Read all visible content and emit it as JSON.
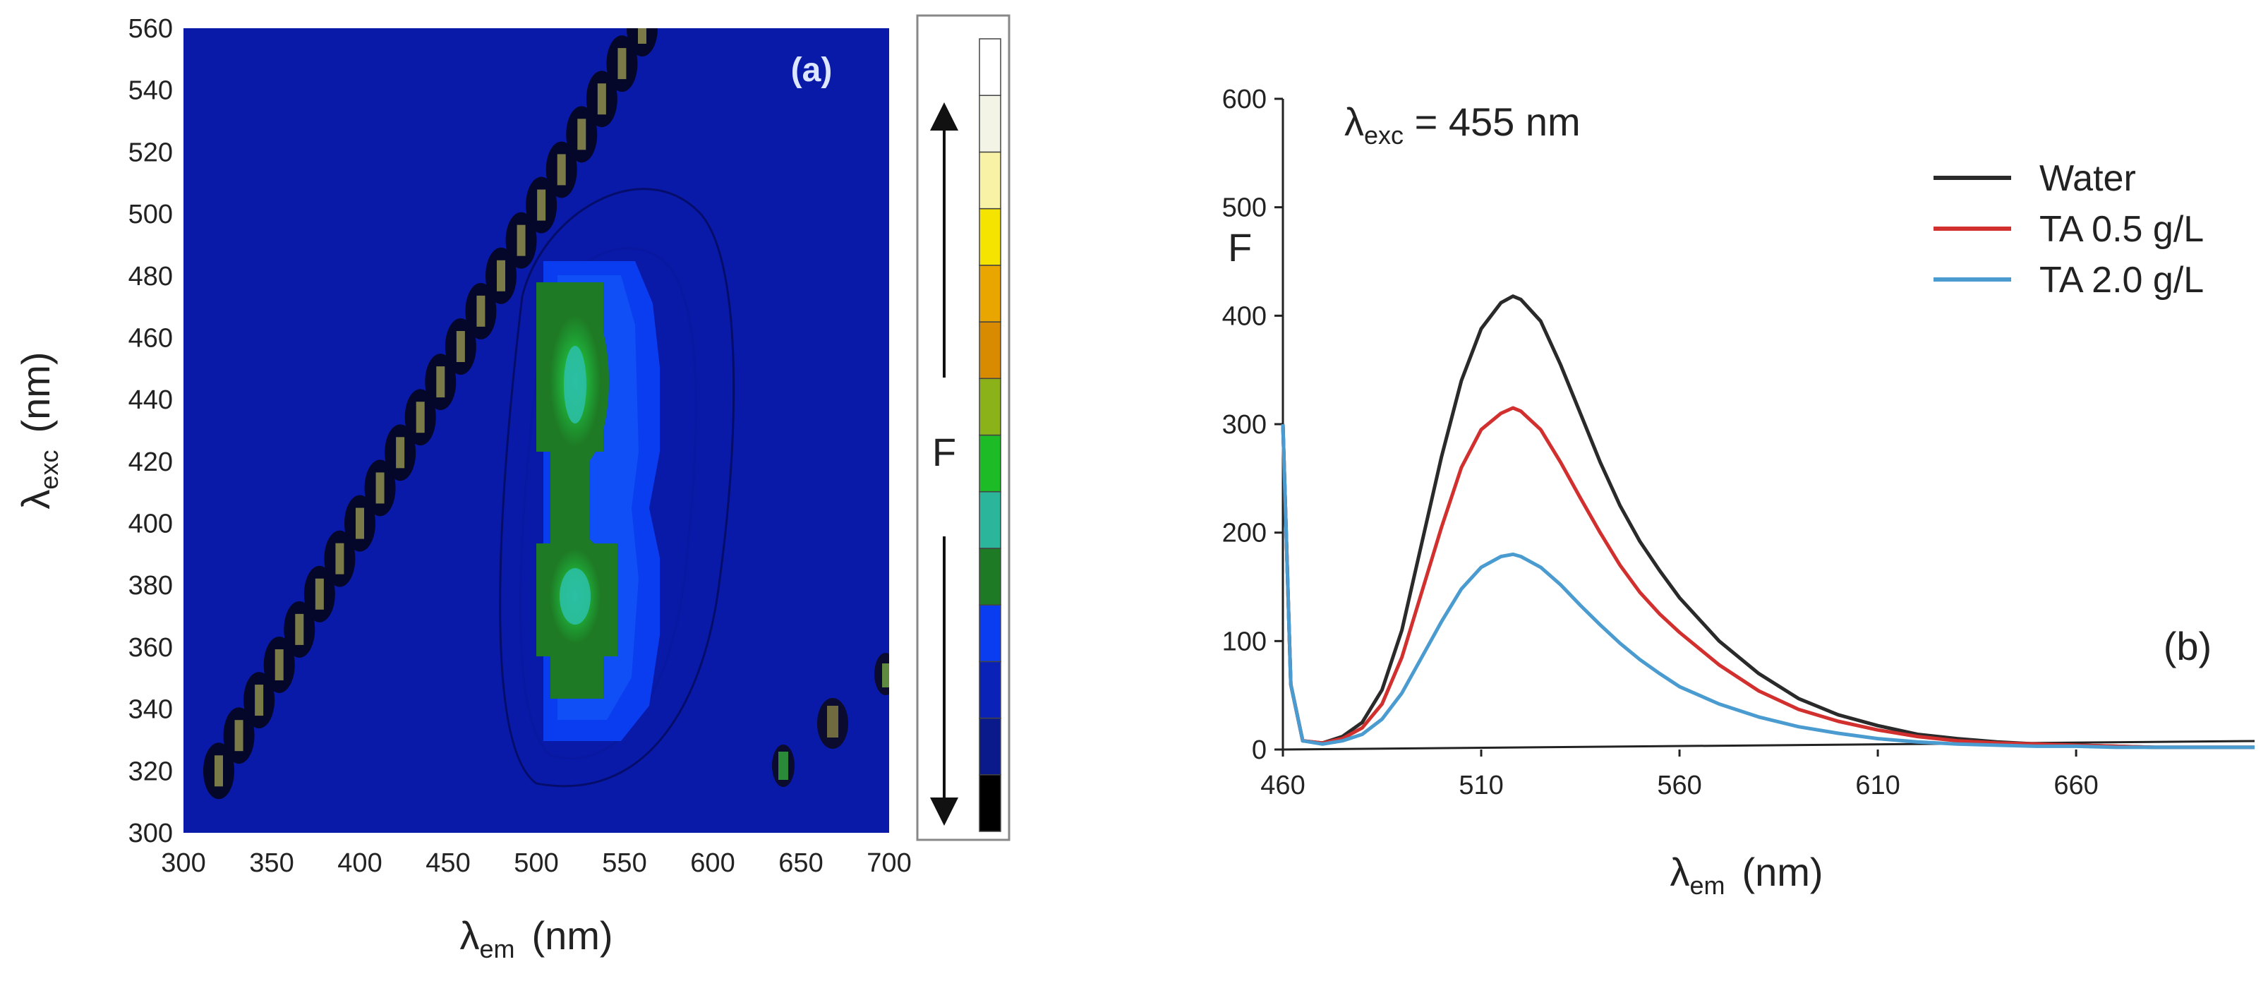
{
  "chart_data": [
    {
      "type": "heatmap",
      "panel_label": "(a)",
      "xlabel": {
        "symbol": "λ",
        "sub": "em",
        "unit": "(nm)"
      },
      "ylabel": {
        "symbol": "λ",
        "sub": "exc",
        "unit": "(nm)"
      },
      "xlim": [
        300,
        700
      ],
      "ylim": [
        300,
        560
      ],
      "xticks": [
        300,
        350,
        400,
        450,
        500,
        550,
        600,
        650,
        700
      ],
      "yticks": [
        300,
        320,
        340,
        360,
        380,
        400,
        420,
        440,
        460,
        480,
        500,
        520,
        540,
        560
      ],
      "background_color": "#0a1aa8",
      "peaks": [
        {
          "em": 518,
          "exc": 450,
          "intensity": "high"
        },
        {
          "em": 518,
          "exc": 375,
          "intensity": "high"
        }
      ],
      "rayleigh_scatter_line": {
        "from": [
          320,
          320
        ],
        "to": [
          560,
          560
        ]
      },
      "colorbar": {
        "label": "F",
        "colors": [
          "#000000",
          "#0a1a8a",
          "#0b22b8",
          "#0a3cf0",
          "#1e7a24",
          "#2bb59a",
          "#1dbb25",
          "#8bb218",
          "#d88a00",
          "#e9a500",
          "#f4e400",
          "#f7f2a6",
          "#f4f4e6",
          "#ffffff"
        ]
      }
    },
    {
      "type": "line",
      "panel_label": "(b)",
      "annotation": {
        "symbol": "λ",
        "sub": "exc",
        "text": " = 455 nm"
      },
      "xlabel": {
        "symbol": "λ",
        "sub": "em",
        "unit": "(nm)"
      },
      "ylabel": "F",
      "xlim": [
        460,
        705
      ],
      "ylim": [
        0,
        600
      ],
      "xticks": [
        460,
        510,
        560,
        610,
        660
      ],
      "yticks": [
        0,
        100,
        200,
        300,
        400,
        500,
        600
      ],
      "series": [
        {
          "name": "Water",
          "color": "#2a2a2a",
          "x": [
            460,
            462,
            465,
            470,
            475,
            480,
            485,
            490,
            495,
            500,
            505,
            510,
            515,
            518,
            520,
            525,
            530,
            535,
            540,
            545,
            550,
            555,
            560,
            570,
            580,
            590,
            600,
            610,
            620,
            630,
            640,
            650,
            660,
            670,
            680,
            690,
            700,
            705
          ],
          "y": [
            300,
            60,
            8,
            6,
            12,
            25,
            55,
            110,
            190,
            270,
            340,
            388,
            412,
            418,
            415,
            395,
            355,
            310,
            265,
            225,
            192,
            165,
            140,
            100,
            70,
            47,
            32,
            22,
            14,
            10,
            7,
            5,
            4,
            3,
            2,
            2,
            2,
            2
          ]
        },
        {
          "name": "TA 0.5 g/L",
          "color": "#d2302e",
          "x": [
            460,
            462,
            465,
            470,
            475,
            480,
            485,
            490,
            495,
            500,
            505,
            510,
            515,
            518,
            520,
            525,
            530,
            535,
            540,
            545,
            550,
            555,
            560,
            570,
            580,
            590,
            600,
            610,
            620,
            630,
            640,
            650,
            660,
            670,
            680,
            690,
            700,
            705
          ],
          "y": [
            300,
            60,
            8,
            6,
            10,
            20,
            42,
            85,
            145,
            205,
            260,
            295,
            310,
            315,
            312,
            295,
            265,
            232,
            200,
            170,
            145,
            125,
            108,
            78,
            54,
            37,
            26,
            18,
            12,
            8,
            6,
            5,
            4,
            3,
            2,
            2,
            2,
            2
          ]
        },
        {
          "name": "TA 2.0 g/L",
          "color": "#4a9bcf",
          "x": [
            460,
            462,
            465,
            470,
            475,
            480,
            485,
            490,
            495,
            500,
            505,
            510,
            515,
            518,
            520,
            525,
            530,
            535,
            540,
            545,
            550,
            555,
            560,
            570,
            580,
            590,
            600,
            610,
            620,
            630,
            640,
            650,
            660,
            670,
            680,
            690,
            700,
            705
          ],
          "y": [
            300,
            60,
            8,
            5,
            8,
            14,
            28,
            52,
            85,
            118,
            148,
            168,
            178,
            180,
            178,
            168,
            152,
            133,
            115,
            98,
            83,
            70,
            58,
            42,
            30,
            21,
            15,
            10,
            7,
            5,
            4,
            3,
            3,
            2,
            2,
            2,
            2,
            2
          ]
        }
      ]
    }
  ]
}
